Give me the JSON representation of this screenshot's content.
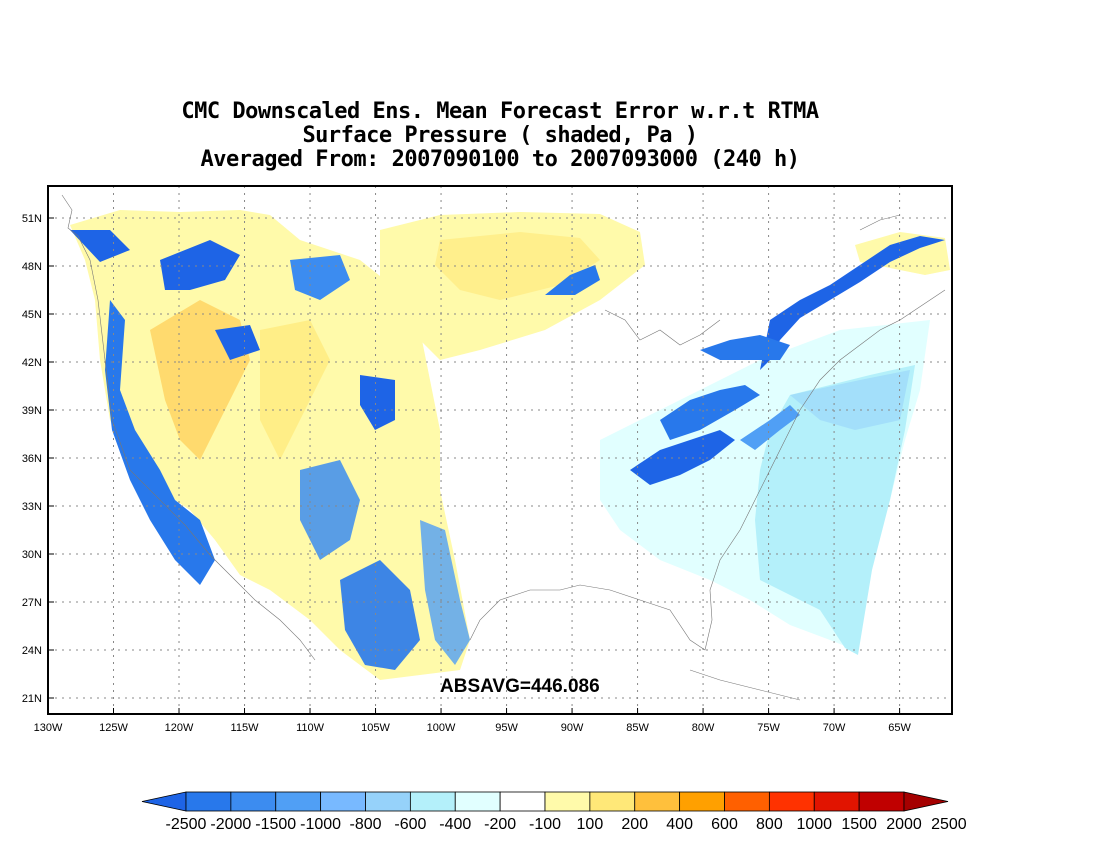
{
  "title": {
    "line1": "CMC Downscaled Ens. Mean Forecast Error w.r.t RTMA",
    "line2": "Surface Pressure ( shaded, Pa )",
    "line3": "Averaged From: 2007090100 to 2007093000 (240 h)"
  },
  "absavg": "ABSAVG=446.086",
  "axes": {
    "lon_ticks": [
      "130W",
      "125W",
      "120W",
      "115W",
      "110W",
      "105W",
      "100W",
      "95W",
      "90W",
      "85W",
      "80W",
      "75W",
      "70W",
      "65W"
    ],
    "lat_ticks": [
      "51N",
      "48N",
      "45N",
      "42N",
      "39N",
      "36N",
      "33N",
      "30N",
      "27N",
      "24N",
      "21N"
    ],
    "lon_range": [
      -130,
      -61
    ],
    "lat_range": [
      20,
      53
    ]
  },
  "colorbar": {
    "colors": [
      "#1e64e6",
      "#2878eb",
      "#3c8cf0",
      "#509ff5",
      "#78b9ff",
      "#96d2fa",
      "#b4f0fa",
      "#e1ffff",
      "#ffffff",
      "#fffaaa",
      "#ffe878",
      "#ffc03c",
      "#ffa000",
      "#ff6000",
      "#ff3200",
      "#e11400",
      "#c00000",
      "#a50000"
    ],
    "labels": [
      "-2500",
      "-2000",
      "-1500",
      "-1000",
      "-800",
      "-600",
      "-400",
      "-200",
      "-100",
      "100",
      "200",
      "400",
      "600",
      "800",
      "1000",
      "1500",
      "2000",
      "2500"
    ]
  }
}
